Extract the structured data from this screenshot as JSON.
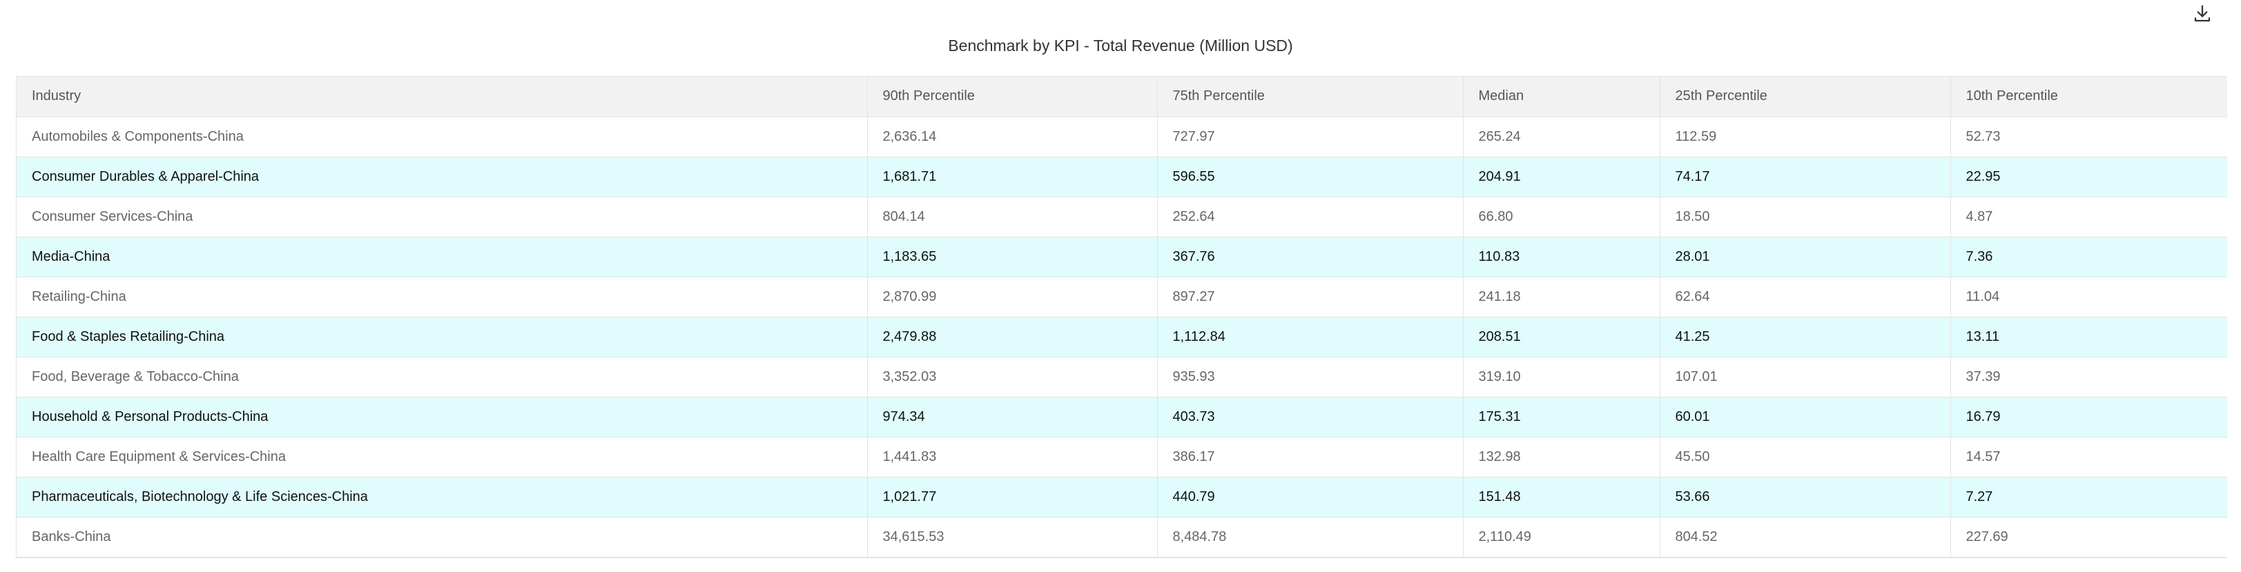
{
  "title": "Benchmark by KPI - Total Revenue (Million USD)",
  "icons": {
    "download": "download-icon"
  },
  "table": {
    "headers": [
      "Industry",
      "90th Percentile",
      "75th Percentile",
      "Median",
      "25th Percentile",
      "10th Percentile"
    ],
    "rows": [
      [
        "Automobiles & Components-China",
        "2,636.14",
        "727.97",
        "265.24",
        "112.59",
        "52.73"
      ],
      [
        "Consumer Durables & Apparel-China",
        "1,681.71",
        "596.55",
        "204.91",
        "74.17",
        "22.95"
      ],
      [
        "Consumer Services-China",
        "804.14",
        "252.64",
        "66.80",
        "18.50",
        "4.87"
      ],
      [
        "Media-China",
        "1,183.65",
        "367.76",
        "110.83",
        "28.01",
        "7.36"
      ],
      [
        "Retailing-China",
        "2,870.99",
        "897.27",
        "241.18",
        "62.64",
        "11.04"
      ],
      [
        "Food & Staples Retailing-China",
        "2,479.88",
        "1,112.84",
        "208.51",
        "41.25",
        "13.11"
      ],
      [
        "Food, Beverage & Tobacco-China",
        "3,352.03",
        "935.93",
        "319.10",
        "107.01",
        "37.39"
      ],
      [
        "Household & Personal Products-China",
        "974.34",
        "403.73",
        "175.31",
        "60.01",
        "16.79"
      ],
      [
        "Health Care Equipment & Services-China",
        "1,441.83",
        "386.17",
        "132.98",
        "45.50",
        "14.57"
      ],
      [
        "Pharmaceuticals, Biotechnology & Life Sciences-China",
        "1,021.77",
        "440.79",
        "151.48",
        "53.66",
        "7.27"
      ],
      [
        "Banks-China",
        "34,615.53",
        "8,484.78",
        "2,110.49",
        "804.52",
        "227.69"
      ]
    ]
  },
  "colors": {
    "header_bg": "#f2f2f2",
    "highlight_row_bg": "#e0fcfc",
    "border": "#e3e3e3"
  }
}
